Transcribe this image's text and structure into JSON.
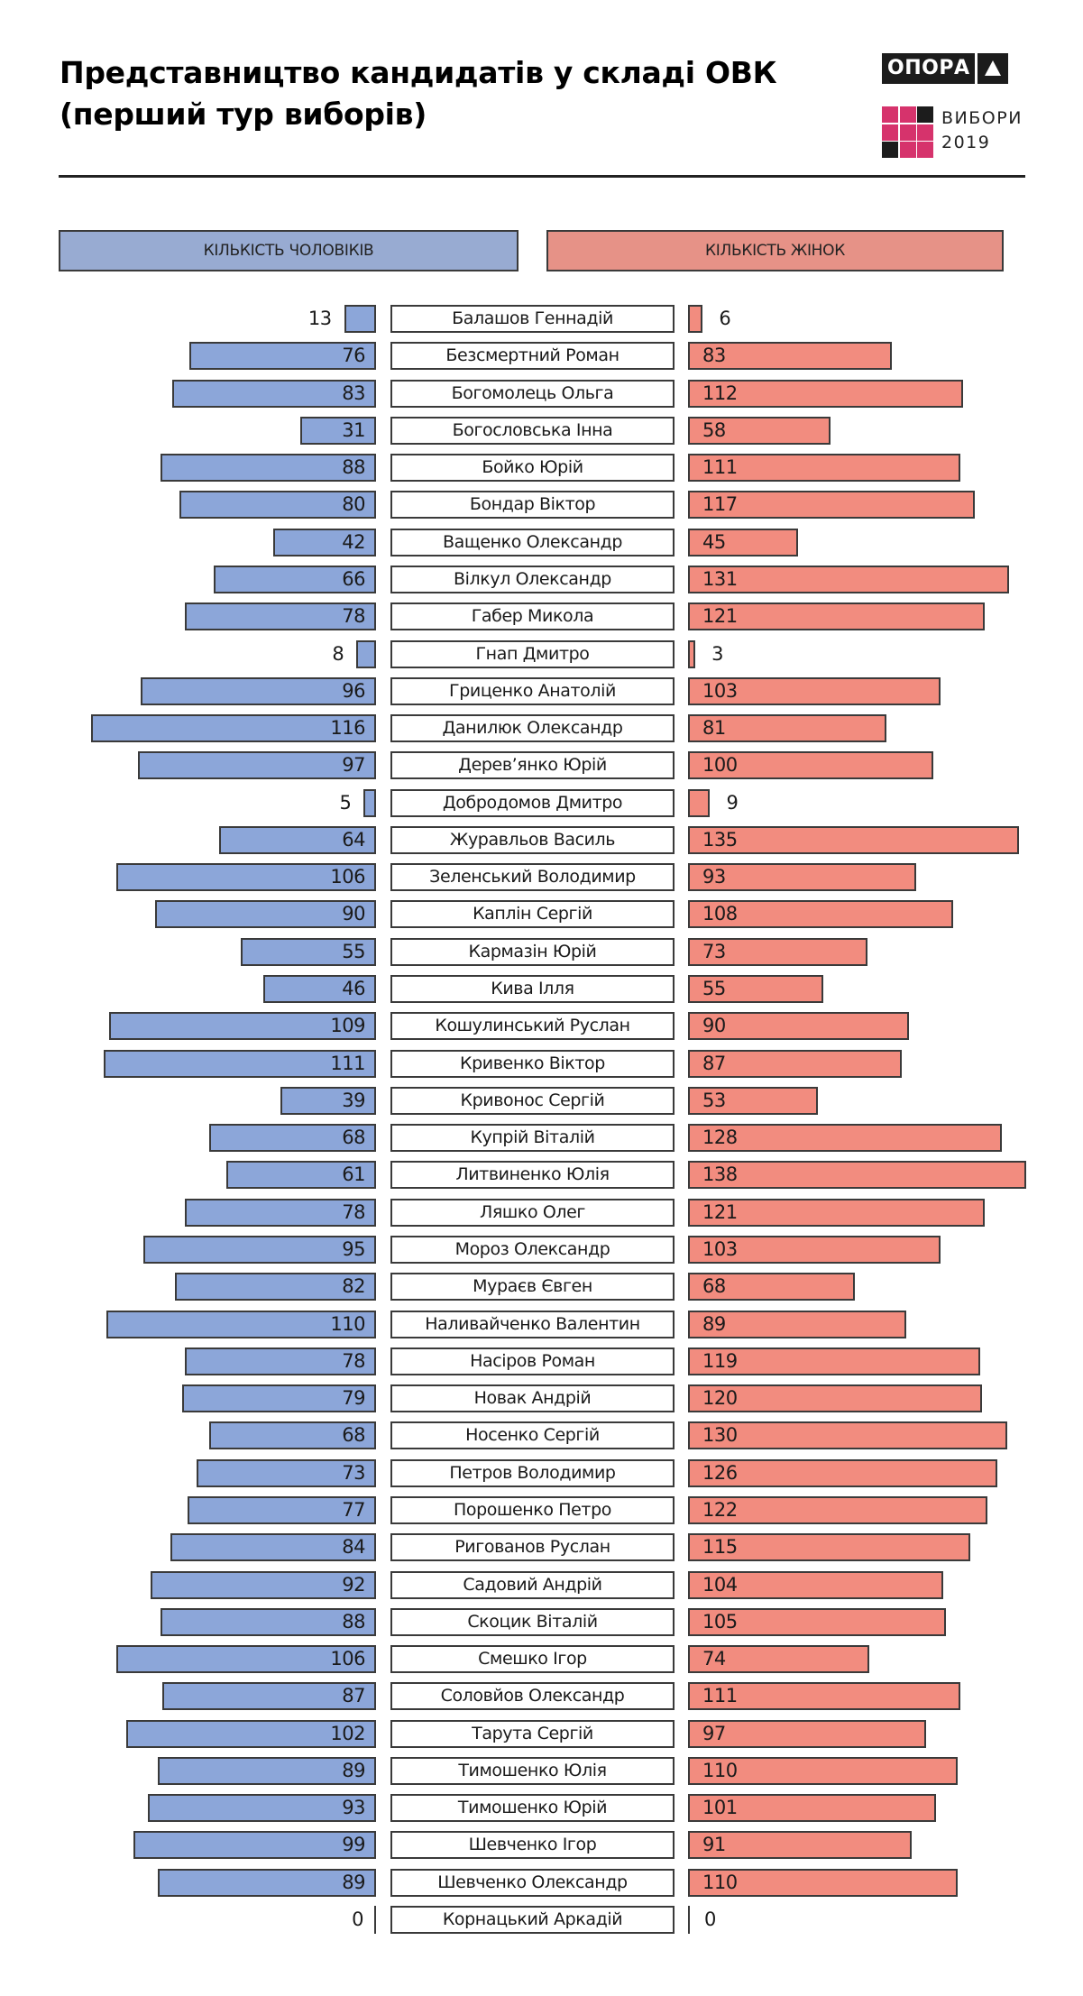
{
  "colors": {
    "male_bar": "#8ca6d9",
    "female_bar": "#f28c7f",
    "male_header": "#98abd2",
    "female_header": "#e69287",
    "logo_pink": "#d6336c",
    "logo_dark": "#1c1c1c"
  },
  "logo": {
    "name": "ОПОРА",
    "icon": "triangle-icon",
    "sub_line1": "ВИБОРИ",
    "sub_line2": "2019",
    "grid": [
      "pink",
      "pink",
      "dark",
      "pink",
      "pink",
      "pink",
      "dark",
      "pink",
      "pink"
    ]
  },
  "chart_data": {
    "type": "bar",
    "orientation": "horizontal-diverging",
    "title_line1": "Представництво кандидатів у складі ОВК",
    "title_line2": "(перший тур виборів)",
    "legend": {
      "male": "КІЛЬКІСТЬ ЧОЛОВІКІВ",
      "female": "КІЛЬКІСТЬ ЖІНОК"
    },
    "categories": [
      "Балашов Геннадій",
      "Безсмертний Роман",
      "Богомолець Ольга",
      "Богословська Інна",
      "Бойко Юрій",
      "Бондар Віктор",
      "Ващенко Олександр",
      "Вілкул Олександр",
      "Габер Микола",
      "Гнап Дмитро",
      "Гриценко Анатолій",
      "Данилюк Олександр",
      "Дерев’янко Юрій",
      "Добродомов Дмитро",
      "Журавльов Василь",
      "Зеленський Володимир",
      "Каплін Сергій",
      "Кармазін Юрій",
      "Кива Ілля",
      "Кошулинський Руслан",
      "Кривенко Віктор",
      "Кривонос Сергій",
      "Купрій Віталій",
      "Литвиненко Юлія",
      "Ляшко Олег",
      "Мороз Олександр",
      "Мураєв Євген",
      "Наливайченко Валентин",
      "Насіров Роман",
      "Новак Андрій",
      "Носенко Сергій",
      "Петров Володимир",
      "Порошенко Петро",
      "Ригованов Руслан",
      "Садовий Андрій",
      "Скоцик Віталій",
      "Смешко Ігор",
      "Соловйов Олександр",
      "Тарута Сергій",
      "Тимошенко Юлія",
      "Тимошенко Юрій",
      "Шевченко Ігор",
      "Шевченко Олександр",
      "Корнацький Аркадій"
    ],
    "series": [
      {
        "name": "КІЛЬКІСТЬ ЧОЛОВІКІВ",
        "values": [
          13,
          76,
          83,
          31,
          88,
          80,
          42,
          66,
          78,
          8,
          96,
          116,
          97,
          5,
          64,
          106,
          90,
          55,
          46,
          109,
          111,
          39,
          68,
          61,
          78,
          95,
          82,
          110,
          78,
          79,
          68,
          73,
          77,
          84,
          92,
          88,
          106,
          87,
          102,
          89,
          93,
          99,
          89,
          0
        ]
      },
      {
        "name": "КІЛЬКІСТЬ ЖІНОК",
        "values": [
          6,
          83,
          112,
          58,
          111,
          117,
          45,
          131,
          121,
          3,
          103,
          81,
          100,
          9,
          135,
          93,
          108,
          73,
          55,
          90,
          87,
          53,
          128,
          138,
          121,
          103,
          68,
          89,
          119,
          120,
          130,
          126,
          122,
          115,
          104,
          105,
          74,
          111,
          97,
          110,
          101,
          91,
          110,
          0
        ]
      }
    ],
    "xlim": [
      0,
      140
    ],
    "grid": false,
    "legend_placement": "top"
  }
}
